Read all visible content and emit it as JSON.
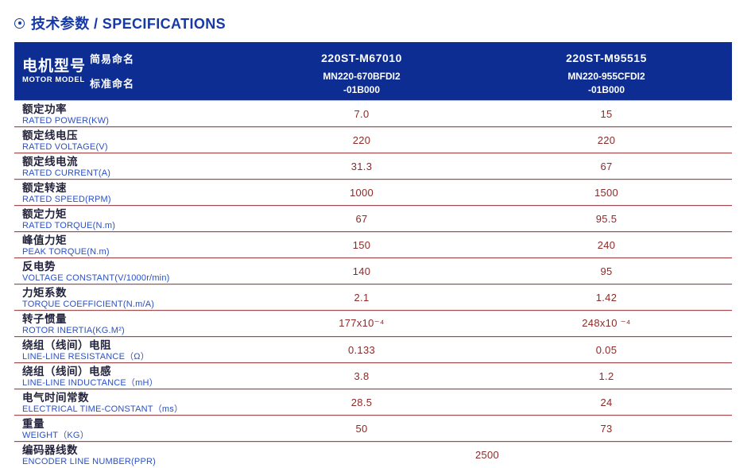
{
  "title": {
    "icon": "circle-dot",
    "text": "技术参数 / SPECIFICATIONS"
  },
  "colors": {
    "accent_blue": "#1639a8",
    "header_bg": "#0d2d93",
    "label_cn": "#23233c",
    "label_en": "#2a50c6",
    "value_red": "#8b2a28",
    "divider": "#9b4d4d"
  },
  "table": {
    "header": {
      "row_label_cn": "电机型号",
      "row_label_en": "MOTOR MODEL",
      "simple_name_label": "简易命名",
      "standard_name_label": "标准命名",
      "columns": [
        {
          "simple": "220ST-M67010",
          "standard_line1": "MN220-670BFDI2",
          "standard_line2": "-01B000"
        },
        {
          "simple": "220ST-M95515",
          "standard_line1": "MN220-955CFDI2",
          "standard_line2": "-01B000"
        }
      ]
    },
    "rows": [
      {
        "cn": "额定功率",
        "en": "RATED POWER(KW)",
        "v1": "7.0",
        "v2": "15"
      },
      {
        "cn": "额定线电压",
        "en": "RATED VOLTAGE(V)",
        "v1": "220",
        "v2": "220"
      },
      {
        "cn": "额定线电流",
        "en": "RATED CURRENT(A)",
        "v1": "31.3",
        "v2": "67"
      },
      {
        "cn": "额定转速",
        "en": "RATED SPEED(RPM)",
        "v1": "1000",
        "v2": "1500"
      },
      {
        "cn": "额定力矩",
        "en": "RATED TORQUE(N.m)",
        "v1": "67",
        "v2": "95.5"
      },
      {
        "cn": "峰值力矩",
        "en": "PEAK TORQUE(N.m)",
        "v1": "150",
        "v2": "240"
      },
      {
        "cn": "反电势",
        "en": "VOLTAGE CONSTANT(V/1000r/min)",
        "v1": "140",
        "v2": "95"
      },
      {
        "cn": "力矩系数",
        "en": "TORQUE COEFFICIENT(N.m/A)",
        "v1": "2.1",
        "v2": "1.42"
      },
      {
        "cn": "转子惯量",
        "en": "ROTOR INERTIA(KG.M²)",
        "v1": "177x10⁻⁴",
        "v2": "248x10 ⁻⁴"
      },
      {
        "cn": "绕组（线间）电阻",
        "en": "LINE-LINE RESISTANCE（Ω）",
        "v1": "0.133",
        "v2": "0.05"
      },
      {
        "cn": "绕组（线间）电感",
        "en": "LINE-LINE INDUCTANCE（mH）",
        "v1": "3.8",
        "v2": "1.2"
      },
      {
        "cn": "电气时间常数",
        "en": "ELECTRICAL TIME-CONSTANT（ms）",
        "v1": "28.5",
        "v2": "24"
      },
      {
        "cn": "重量",
        "en": "WEIGHT（KG）",
        "v1": "50",
        "v2": "73"
      },
      {
        "cn": "编码器线数",
        "en": "ENCODER LINE NUMBER(PPR)",
        "span": "2500"
      }
    ]
  }
}
